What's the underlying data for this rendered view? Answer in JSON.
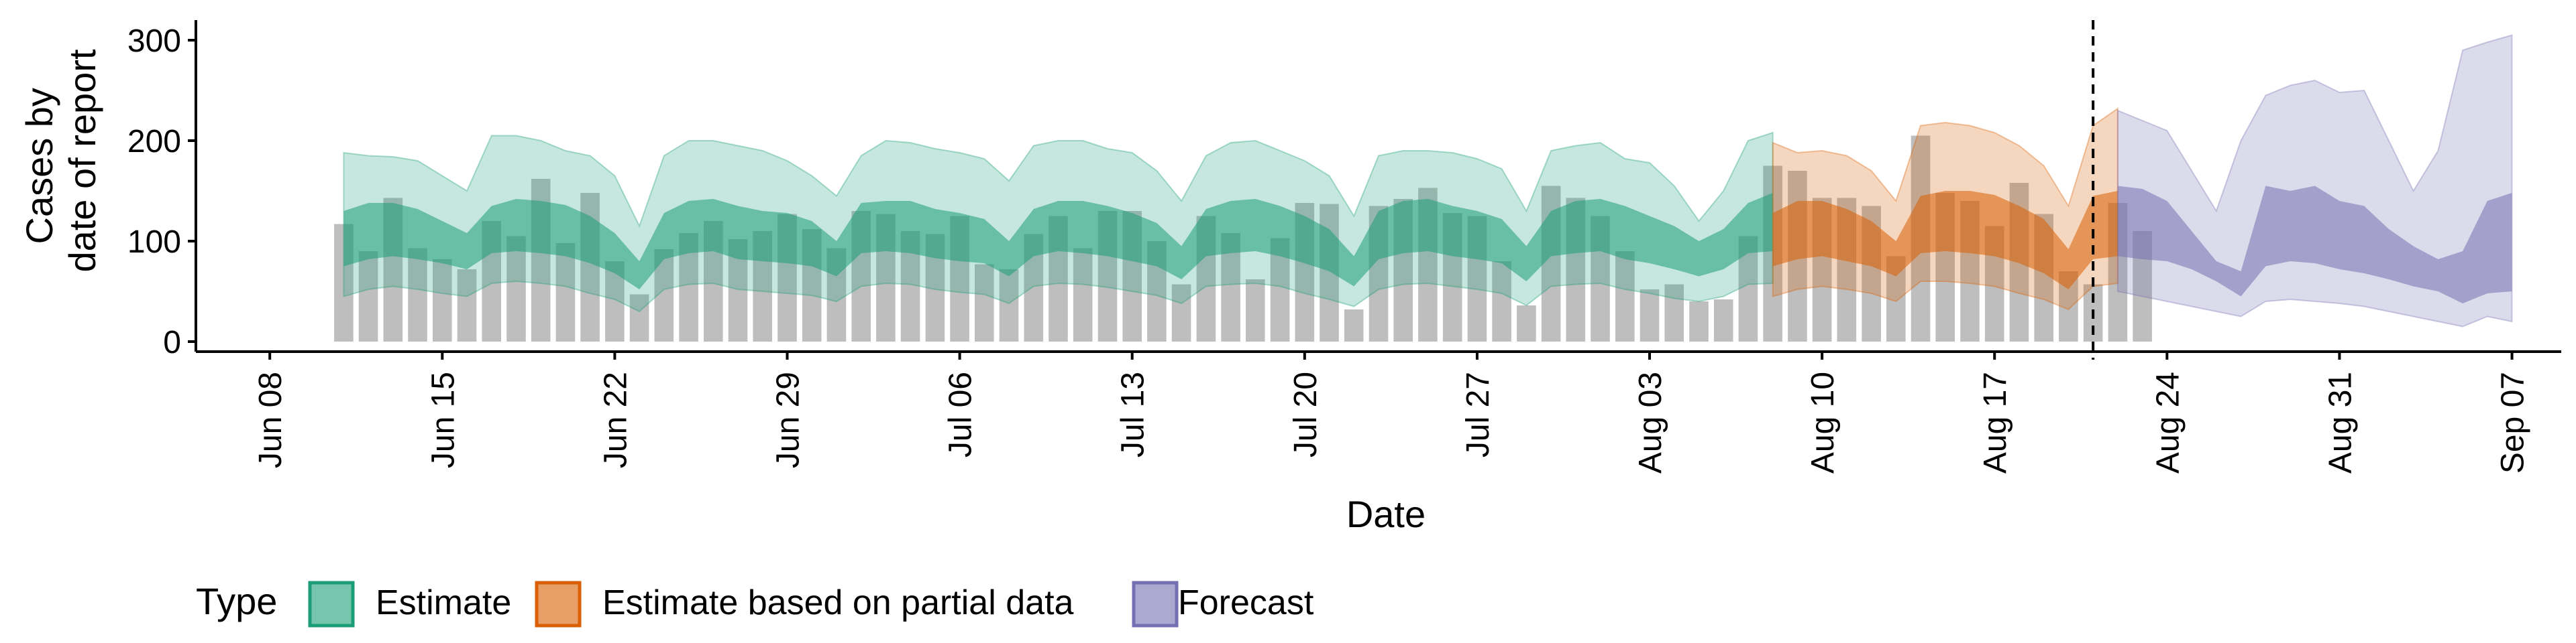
{
  "chart_data": {
    "type": "area",
    "ylabel": [
      "Cases by",
      "date of report"
    ],
    "xlabel": "Date",
    "ylim": [
      -10,
      320
    ],
    "yticks": [
      0,
      100,
      200,
      300
    ],
    "xlim": [
      "2020-06-05",
      "2020-09-09"
    ],
    "xticks": [
      {
        "date": "2020-06-08",
        "label": "Jun 08"
      },
      {
        "date": "2020-06-15",
        "label": "Jun 15"
      },
      {
        "date": "2020-06-22",
        "label": "Jun 22"
      },
      {
        "date": "2020-06-29",
        "label": "Jun 29"
      },
      {
        "date": "2020-07-06",
        "label": "Jul 06"
      },
      {
        "date": "2020-07-13",
        "label": "Jul 13"
      },
      {
        "date": "2020-07-20",
        "label": "Jul 20"
      },
      {
        "date": "2020-07-27",
        "label": "Jul 27"
      },
      {
        "date": "2020-08-03",
        "label": "Aug 03"
      },
      {
        "date": "2020-08-10",
        "label": "Aug 10"
      },
      {
        "date": "2020-08-17",
        "label": "Aug 17"
      },
      {
        "date": "2020-08-24",
        "label": "Aug 24"
      },
      {
        "date": "2020-08-31",
        "label": "Aug 31"
      },
      {
        "date": "2020-09-07",
        "label": "Sep 07"
      }
    ],
    "vline_date": "2020-08-21",
    "legend": {
      "title": "Type",
      "position": "bottom",
      "entries": [
        {
          "label": "Estimate",
          "fill": "#1b9e77",
          "stroke": "#1b9e77"
        },
        {
          "label": "Estimate based on partial data",
          "fill": "#d95f02",
          "stroke": "#d95f02"
        },
        {
          "label": "Forecast",
          "fill": "#7570b3",
          "stroke": "#7570b3"
        }
      ]
    },
    "bars": {
      "color": "#b3b3b3",
      "start_date": "2020-06-11",
      "values": [
        117,
        90,
        143,
        93,
        82,
        72,
        120,
        105,
        162,
        98,
        148,
        80,
        47,
        92,
        108,
        120,
        102,
        110,
        127,
        112,
        93,
        130,
        127,
        110,
        107,
        125,
        77,
        72,
        107,
        125,
        93,
        130,
        130,
        100,
        57,
        125,
        108,
        62,
        103,
        138,
        137,
        32,
        135,
        142,
        153,
        128,
        125,
        80,
        36,
        155,
        143,
        125,
        90,
        52,
        57,
        40,
        42,
        105,
        175,
        170,
        143,
        143,
        135,
        85,
        205,
        148,
        140,
        115,
        158,
        127,
        70,
        57,
        138,
        110
      ]
    },
    "series": [
      {
        "name": "Estimate",
        "color": "#1b9e77",
        "start_date": "2020-06-11",
        "outer_low": [
          45,
          52,
          55,
          52,
          48,
          45,
          58,
          60,
          58,
          55,
          48,
          42,
          30,
          52,
          57,
          58,
          52,
          50,
          48,
          46,
          40,
          55,
          58,
          57,
          52,
          49,
          47,
          38,
          55,
          58,
          57,
          54,
          50,
          46,
          38,
          55,
          57,
          58,
          55,
          48,
          42,
          35,
          52,
          57,
          58,
          55,
          52,
          48,
          36,
          55,
          57,
          58,
          52,
          48,
          43,
          40,
          45,
          57,
          58
        ],
        "inner_low": [
          75,
          82,
          85,
          82,
          78,
          72,
          88,
          90,
          88,
          85,
          78,
          68,
          52,
          82,
          88,
          90,
          82,
          80,
          78,
          75,
          65,
          88,
          90,
          88,
          83,
          80,
          78,
          65,
          85,
          90,
          88,
          85,
          80,
          75,
          62,
          85,
          88,
          90,
          85,
          78,
          70,
          55,
          82,
          88,
          90,
          85,
          82,
          78,
          60,
          85,
          88,
          90,
          82,
          78,
          72,
          65,
          72,
          88,
          90
        ],
        "inner_high": [
          130,
          138,
          138,
          132,
          120,
          108,
          135,
          142,
          140,
          136,
          125,
          108,
          80,
          128,
          140,
          142,
          135,
          130,
          128,
          120,
          100,
          138,
          140,
          140,
          132,
          128,
          122,
          100,
          132,
          140,
          140,
          135,
          128,
          118,
          95,
          132,
          140,
          142,
          135,
          125,
          112,
          85,
          130,
          140,
          142,
          135,
          130,
          122,
          95,
          130,
          140,
          142,
          135,
          125,
          115,
          100,
          112,
          138,
          148
        ],
        "outer_high": [
          188,
          185,
          184,
          180,
          165,
          150,
          205,
          205,
          200,
          190,
          185,
          165,
          115,
          185,
          200,
          200,
          195,
          190,
          180,
          165,
          145,
          185,
          200,
          198,
          192,
          188,
          182,
          160,
          195,
          200,
          200,
          192,
          188,
          170,
          140,
          185,
          198,
          200,
          190,
          180,
          165,
          125,
          185,
          190,
          190,
          188,
          182,
          172,
          130,
          190,
          195,
          198,
          182,
          178,
          155,
          120,
          150,
          200,
          208
        ]
      },
      {
        "name": "Estimate based on partial data",
        "color": "#d95f02",
        "start_date": "2020-08-08",
        "outer_low": [
          45,
          52,
          55,
          52,
          48,
          40,
          60,
          60,
          58,
          55,
          48,
          42,
          32,
          55,
          58
        ],
        "inner_low": [
          75,
          82,
          85,
          80,
          75,
          65,
          88,
          90,
          88,
          85,
          78,
          68,
          52,
          82,
          85
        ],
        "inner_high": [
          128,
          140,
          140,
          132,
          120,
          100,
          145,
          150,
          150,
          146,
          135,
          122,
          92,
          145,
          150
        ],
        "outer_high": [
          198,
          188,
          190,
          185,
          170,
          140,
          215,
          218,
          215,
          208,
          195,
          175,
          135,
          215,
          232
        ]
      },
      {
        "name": "Forecast",
        "color": "#7570b3",
        "start_date": "2020-08-22",
        "outer_low": [
          50,
          45,
          40,
          35,
          30,
          25,
          40,
          42,
          40,
          38,
          35,
          30,
          25,
          20,
          15,
          25,
          20
        ],
        "inner_low": [
          85,
          82,
          80,
          72,
          60,
          45,
          75,
          80,
          78,
          72,
          68,
          62,
          55,
          50,
          38,
          48,
          50
        ],
        "inner_high": [
          155,
          152,
          140,
          110,
          80,
          70,
          155,
          150,
          155,
          140,
          135,
          112,
          95,
          82,
          90,
          140,
          148
        ],
        "outer_high": [
          230,
          220,
          210,
          170,
          130,
          200,
          245,
          255,
          260,
          248,
          250,
          200,
          150,
          190,
          290,
          298,
          305
        ]
      }
    ]
  }
}
